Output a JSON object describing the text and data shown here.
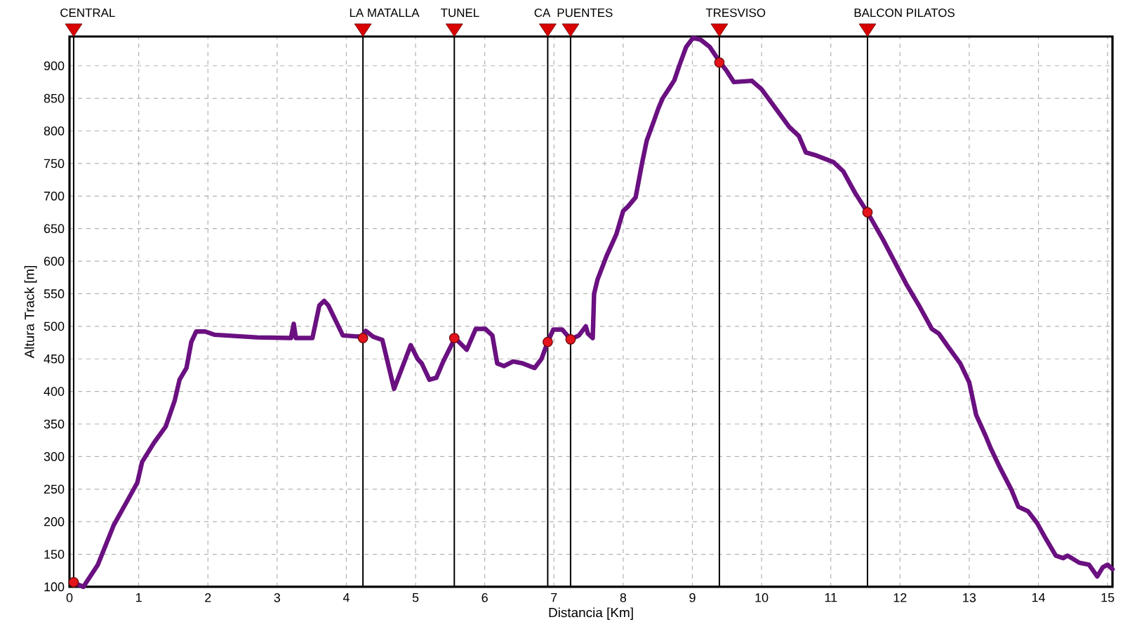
{
  "chart_data": {
    "type": "line",
    "xlabel": "Distancia [Km]",
    "ylabel": "Altura Track [m]",
    "xlim": [
      0,
      15.07
    ],
    "ylim": [
      100,
      945
    ],
    "xticks": [
      0,
      1,
      2,
      3,
      4,
      5,
      6,
      7,
      8,
      9,
      10,
      11,
      12,
      13,
      14,
      15
    ],
    "yticks": [
      100,
      150,
      200,
      250,
      300,
      350,
      400,
      450,
      500,
      550,
      600,
      650,
      700,
      750,
      800,
      850,
      900
    ],
    "grid": true,
    "series": [
      {
        "type": "line",
        "color": "#6a1080",
        "marker": "none",
        "line_style": "solid",
        "x": [
          0.05,
          0.2,
          0.41,
          0.64,
          0.85,
          0.98,
          1.05,
          1.22,
          1.39,
          1.52,
          1.59,
          1.69,
          1.76,
          1.83,
          1.96,
          2.1,
          2.71,
          3.2,
          3.24,
          3.27,
          3.51,
          3.61,
          3.68,
          3.74,
          3.95,
          4.22,
          4.28,
          4.39,
          4.52,
          4.69,
          4.93,
          5.03,
          5.09,
          5.2,
          5.3,
          5.4,
          5.57,
          5.74,
          5.87,
          6.01,
          6.11,
          6.18,
          6.28,
          6.41,
          6.55,
          6.72,
          6.82,
          6.91,
          6.99,
          7.12,
          7.24,
          7.36,
          7.46,
          7.49,
          7.56,
          7.58,
          7.63,
          7.76,
          7.9,
          8.0,
          8.07,
          8.18,
          8.27,
          8.34,
          8.44,
          8.51,
          8.57,
          8.68,
          8.74,
          8.81,
          8.91,
          9.01,
          9.12,
          9.25,
          9.39,
          9.49,
          9.6,
          9.86,
          10.0,
          10.2,
          10.4,
          10.54,
          10.64,
          10.77,
          11.04,
          11.18,
          11.35,
          11.53,
          11.75,
          12.09,
          12.29,
          12.46,
          12.56,
          12.7,
          12.87,
          13.0,
          13.1,
          13.24,
          13.31,
          13.44,
          13.61,
          13.71,
          13.85,
          13.98,
          14.09,
          14.25,
          14.36,
          14.42,
          14.59,
          14.73,
          14.85,
          14.93,
          15.0,
          15.07
        ],
        "values": [
          107,
          100,
          134,
          195,
          235,
          260,
          292,
          321,
          346,
          386,
          418,
          436,
          476,
          492,
          492,
          487,
          483,
          482,
          504,
          482,
          482,
          532,
          539,
          532,
          486,
          484,
          493,
          484,
          479,
          404,
          471,
          450,
          443,
          418,
          421,
          446,
          482,
          464,
          496,
          496,
          486,
          443,
          439,
          446,
          443,
          436,
          450,
          476,
          495,
          495,
          480,
          486,
          500,
          489,
          482,
          550,
          572,
          608,
          641,
          677,
          684,
          698,
          749,
          785,
          814,
          835,
          850,
          868,
          878,
          900,
          929,
          943,
          940,
          929,
          907,
          893,
          875,
          877,
          864,
          835,
          806,
          792,
          767,
          763,
          752,
          738,
          705,
          675,
          634,
          565,
          529,
          496,
          489,
          468,
          443,
          414,
          364,
          331,
          313,
          284,
          249,
          223,
          216,
          198,
          177,
          148,
          144,
          148,
          137,
          134,
          116,
          130,
          134,
          127
        ]
      },
      {
        "type": "scatter",
        "color": "#e3141b",
        "marker": "circle",
        "x": [
          0.06,
          4.24,
          5.56,
          6.91,
          7.24,
          9.39,
          11.53
        ],
        "values": [
          107,
          482,
          482,
          476,
          480,
          905,
          675
        ]
      }
    ],
    "ref_lines": [
      {
        "axis": "x",
        "value": 0.06,
        "label": "CENTRAL",
        "color": "#000000"
      },
      {
        "axis": "x",
        "value": 4.24,
        "label": "LA MATALLA",
        "color": "#000000"
      },
      {
        "axis": "x",
        "value": 5.56,
        "label": "TUNEL",
        "color": "#000000"
      },
      {
        "axis": "x",
        "value": 6.91,
        "label": "CA",
        "color": "#000000"
      },
      {
        "axis": "x",
        "value": 7.24,
        "label": "PUENTES",
        "color": "#000000"
      },
      {
        "axis": "x",
        "value": 9.39,
        "label": "TRESVISO",
        "color": "#000000"
      },
      {
        "axis": "x",
        "value": 11.53,
        "label": "BALCON PILATOS",
        "color": "#000000"
      }
    ]
  }
}
